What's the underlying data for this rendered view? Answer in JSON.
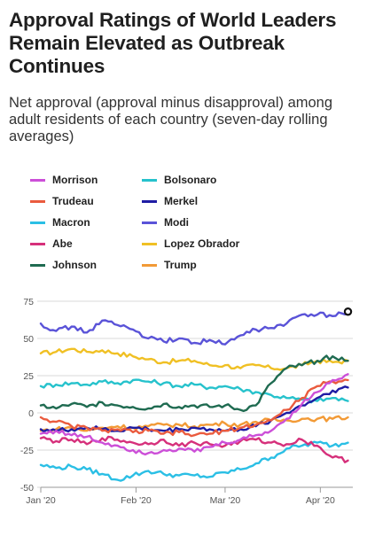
{
  "header": {
    "title": "Approval Ratings of World Leaders Remain Elevated as Outbreak Continues",
    "subtitle": "Net approval (approval minus disapproval) among adult residents of each country (seven-day rolling averages)"
  },
  "chart_data": {
    "type": "line",
    "title": "Approval Ratings of World Leaders Remain Elevated as Outbreak Continues",
    "subtitle": "Net approval (approval minus disapproval) among adult residents of each country (seven-day rolling averages)",
    "xlabel": "",
    "ylabel": "",
    "ylim": [
      -50,
      75
    ],
    "yticks": [
      75,
      50,
      25,
      0,
      -25,
      -50
    ],
    "xlim": [
      0,
      101
    ],
    "xticks": [
      {
        "x": 0,
        "label": "Jan '20"
      },
      {
        "x": 31,
        "label": "Feb '20"
      },
      {
        "x": 60,
        "label": "Mar '20"
      },
      {
        "x": 91,
        "label": "Apr '20"
      }
    ],
    "grid": true,
    "legend_position": "top",
    "x": [
      0,
      5,
      10,
      15,
      20,
      25,
      30,
      35,
      40,
      45,
      50,
      55,
      60,
      65,
      70,
      75,
      80,
      85,
      90,
      95,
      100
    ],
    "series": [
      {
        "name": "Morrison",
        "color": "#cc4fd8",
        "legend_col": 0,
        "legend_row": 0,
        "values": [
          -14,
          -12,
          -15,
          -16,
          -20,
          -22,
          -25,
          -27,
          -25,
          -24,
          -26,
          -23,
          -20,
          -18,
          -15,
          -12,
          -4,
          6,
          14,
          22,
          26
        ]
      },
      {
        "name": "Bolsonaro",
        "color": "#26c2cc",
        "legend_col": 1,
        "legend_row": 0,
        "values": [
          18,
          19,
          20,
          19,
          21,
          20,
          22,
          21,
          20,
          18,
          19,
          17,
          18,
          16,
          14,
          12,
          10,
          9,
          8,
          10,
          8
        ]
      },
      {
        "name": "Trudeau",
        "color": "#ea5b3e",
        "legend_col": 0,
        "legend_row": 1,
        "values": [
          -3,
          -6,
          -9,
          -10,
          -12,
          -11,
          -13,
          -12,
          -14,
          -13,
          -15,
          -14,
          -12,
          -10,
          -8,
          -5,
          2,
          10,
          18,
          21,
          22
        ]
      },
      {
        "name": "Merkel",
        "color": "#1f1ca4",
        "legend_col": 1,
        "legend_row": 1,
        "values": [
          -11,
          -12,
          -11,
          -10,
          -11,
          -12,
          -10,
          -11,
          -12,
          -11,
          -10,
          -11,
          -12,
          -11,
          -9,
          -5,
          0,
          5,
          10,
          15,
          17
        ]
      },
      {
        "name": "Macron",
        "color": "#2bbfe5",
        "legend_col": 0,
        "legend_row": 2,
        "values": [
          -35,
          -37,
          -36,
          -38,
          -41,
          -45,
          -42,
          -39,
          -41,
          -42,
          -42,
          -43,
          -40,
          -38,
          -34,
          -30,
          -24,
          -22,
          -20,
          -22,
          -20
        ]
      },
      {
        "name": "Modi",
        "color": "#5a53d8",
        "legend_col": 1,
        "legend_row": 2,
        "values": [
          60,
          55,
          58,
          54,
          62,
          59,
          56,
          50,
          48,
          50,
          47,
          49,
          46,
          52,
          56,
          57,
          60,
          66,
          66,
          65,
          68
        ]
      },
      {
        "name": "Abe",
        "color": "#d6307b",
        "legend_col": 0,
        "legend_row": 3,
        "values": [
          -17,
          -19,
          -18,
          -21,
          -17,
          -18,
          -20,
          -21,
          -18,
          -22,
          -20,
          -21,
          -22,
          -19,
          -18,
          -20,
          -21,
          -18,
          -22,
          -30,
          -32
        ]
      },
      {
        "name": "Lopez Obrador",
        "color": "#f0c024",
        "legend_col": 1,
        "legend_row": 3,
        "values": [
          40,
          41,
          43,
          41,
          42,
          40,
          38,
          36,
          34,
          35,
          35,
          32,
          32,
          30,
          32,
          30,
          30,
          32,
          35,
          34,
          35
        ]
      },
      {
        "name": "Johnson",
        "color": "#1f6b51",
        "legend_col": 0,
        "legend_row": 4,
        "values": [
          5,
          3,
          6,
          4,
          7,
          5,
          4,
          3,
          6,
          4,
          5,
          4,
          5,
          2,
          5,
          20,
          30,
          32,
          35,
          38,
          35
        ]
      },
      {
        "name": "Trump",
        "color": "#f29a36",
        "legend_col": 1,
        "legend_row": 4,
        "values": [
          -12,
          -11,
          -10,
          -12,
          -10,
          -9,
          -10,
          -9,
          -8,
          -8,
          -9,
          -8,
          -7,
          -8,
          -6,
          -5,
          -5,
          -4,
          -4,
          -4,
          -3
        ]
      }
    ],
    "highlight_point": {
      "series": "Modi",
      "x": 100,
      "y": 68
    }
  }
}
